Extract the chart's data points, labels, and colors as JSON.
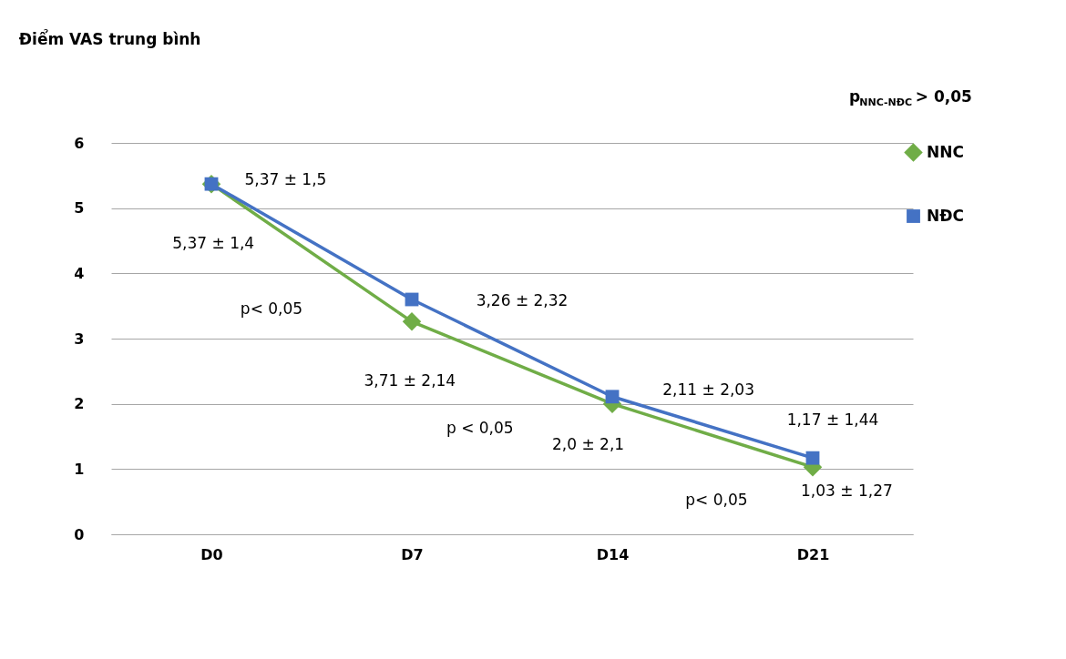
{
  "chart_data": {
    "type": "line",
    "title": "Điểm VAS trung bình",
    "categories": [
      "D0",
      "D7",
      "D14",
      "D21"
    ],
    "ylim": [
      0,
      6
    ],
    "yticks": [
      0,
      1,
      2,
      3,
      4,
      5,
      6
    ],
    "grid": "y",
    "legend": "right",
    "line_style": "solid",
    "series": [
      {
        "name": "NNC",
        "color": "#70ad47",
        "marker": "diamond",
        "values": [
          5.37,
          3.26,
          2.0,
          1.03
        ]
      },
      {
        "name": "NĐC",
        "color": "#4472c4",
        "marker": "square",
        "values": [
          5.37,
          3.6,
          2.11,
          1.17
        ]
      }
    ],
    "annotations": [
      "p$_{NNC-NĐC}$ > 0,05",
      "5,37 ± 1,5",
      "5,37 ± 1,4",
      "p< 0,05",
      "3,26 ± 2,32",
      "3,71 ± 2,14",
      "p < 0,05",
      "2,11 ± 2,03",
      "2,0 ± 2,1",
      "1,17 ± 1,44",
      "1,03 ± 1,27",
      "p< 0,05"
    ]
  }
}
